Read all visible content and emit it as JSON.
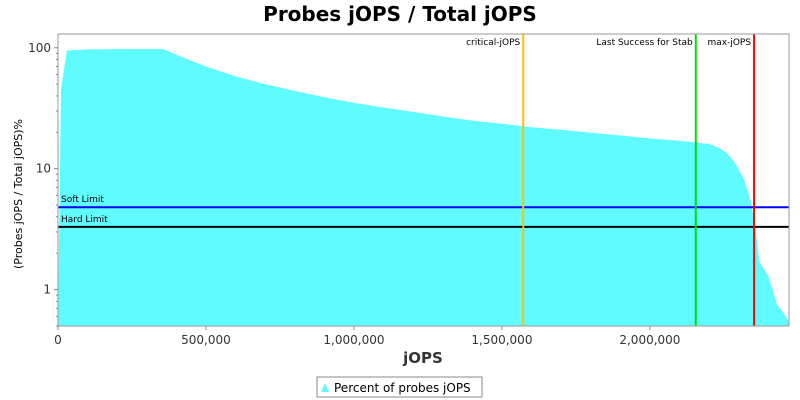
{
  "chart_data": {
    "type": "area",
    "title": "Probes jOPS / Total jOPS",
    "xlabel": "jOPS",
    "ylabel": "(Probes jOPS / Total jOPS)%",
    "yscale": "log",
    "xlim": [
      0,
      2470000
    ],
    "ylim": [
      0.5,
      130
    ],
    "x_ticks": [
      0,
      500000,
      1000000,
      1500000,
      2000000
    ],
    "x_tick_labels": [
      "0",
      "500,000",
      "1,000,000",
      "1,500,000",
      "2,000,000"
    ],
    "y_ticks": [
      1,
      10,
      100
    ],
    "y_tick_labels": [
      "1",
      "10",
      "100"
    ],
    "grid": false,
    "legend_position": "bottom",
    "series": [
      {
        "name": "Percent of probes jOPS",
        "color": "#5ffbff",
        "x": [
          0,
          10000,
          30000,
          100000,
          200000,
          300000,
          355000,
          450000,
          500000,
          600000,
          700000,
          800000,
          900000,
          1000000,
          1100000,
          1200000,
          1300000,
          1400000,
          1500000,
          1600000,
          1700000,
          1800000,
          1900000,
          2000000,
          2100000,
          2150000,
          2200000,
          2230000,
          2260000,
          2290000,
          2320000,
          2340000,
          2355000,
          2370000,
          2400000,
          2430000,
          2450000,
          2470000
        ],
        "y": [
          0.5,
          45,
          95,
          97,
          97.5,
          97.5,
          97.5,
          78,
          70,
          58,
          50,
          44,
          39,
          35,
          32,
          29.5,
          27,
          25,
          23.5,
          22,
          21,
          19.8,
          18.8,
          17.8,
          17,
          16.5,
          16,
          15,
          13.5,
          11,
          8,
          5.5,
          3.5,
          1.7,
          1.3,
          0.75,
          0.65,
          0.55
        ]
      }
    ],
    "horizontal_markers": [
      {
        "label": "Soft Limit",
        "y": 4.8,
        "color": "#0000ff"
      },
      {
        "label": "Hard Limit",
        "y": 3.3,
        "color": "#000000"
      }
    ],
    "vertical_markers": [
      {
        "label": "critical-jOPS",
        "x": 1572000,
        "color": "#ffc000"
      },
      {
        "label": "Last Success for Stab",
        "x": 2155000,
        "color": "#00e000"
      },
      {
        "label": "max-jOPS",
        "x": 2352000,
        "color": "#ff0000"
      }
    ]
  }
}
